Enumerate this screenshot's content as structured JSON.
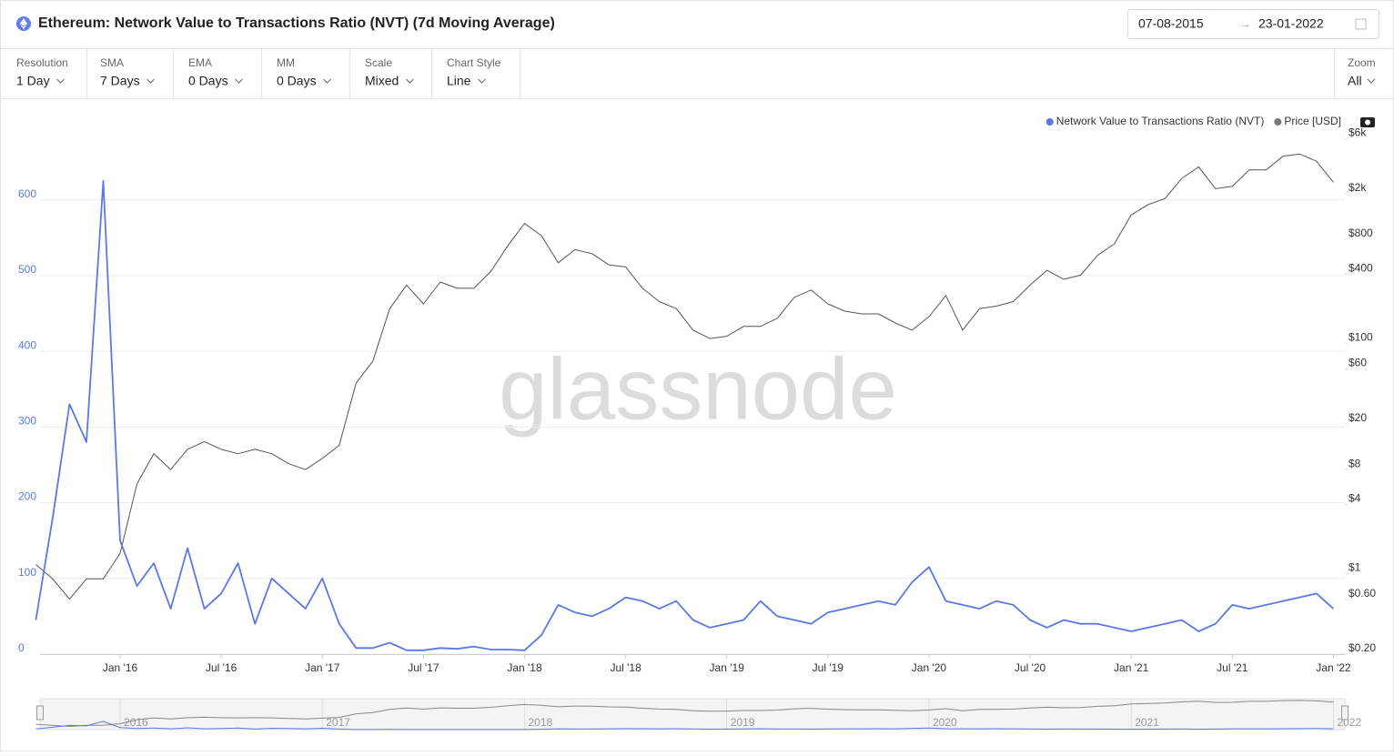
{
  "header": {
    "title": "Ethereum: Network Value to Transactions Ratio (NVT) (7d Moving Average)",
    "date_from": "07-08-2015",
    "date_to": "23-01-2022"
  },
  "controls": [
    {
      "label": "Resolution",
      "value": "1 Day"
    },
    {
      "label": "SMA",
      "value": "7 Days"
    },
    {
      "label": "EMA",
      "value": "0 Days"
    },
    {
      "label": "MM",
      "value": "0 Days"
    },
    {
      "label": "Scale",
      "value": "Mixed"
    },
    {
      "label": "Chart Style",
      "value": "Line"
    }
  ],
  "zoom": {
    "label": "Zoom",
    "value": "All"
  },
  "watermark": "glassnode",
  "navigator": {
    "labels": [
      "2016",
      "2017",
      "2018",
      "2019",
      "2020",
      "2021",
      "2022"
    ]
  },
  "chart_data": {
    "type": "line",
    "x": [
      "2015-08",
      "2015-09",
      "2015-10",
      "2015-11",
      "2015-12",
      "2016-01",
      "2016-02",
      "2016-03",
      "2016-04",
      "2016-05",
      "2016-06",
      "2016-07",
      "2016-08",
      "2016-09",
      "2016-10",
      "2016-11",
      "2016-12",
      "2017-01",
      "2017-02",
      "2017-03",
      "2017-04",
      "2017-05",
      "2017-06",
      "2017-07",
      "2017-08",
      "2017-09",
      "2017-10",
      "2017-11",
      "2017-12",
      "2018-01",
      "2018-02",
      "2018-03",
      "2018-04",
      "2018-05",
      "2018-06",
      "2018-07",
      "2018-08",
      "2018-09",
      "2018-10",
      "2018-11",
      "2018-12",
      "2019-01",
      "2019-02",
      "2019-03",
      "2019-04",
      "2019-05",
      "2019-06",
      "2019-07",
      "2019-08",
      "2019-09",
      "2019-10",
      "2019-11",
      "2019-12",
      "2020-01",
      "2020-02",
      "2020-03",
      "2020-04",
      "2020-05",
      "2020-06",
      "2020-07",
      "2020-08",
      "2020-09",
      "2020-10",
      "2020-11",
      "2020-12",
      "2021-01",
      "2021-02",
      "2021-03",
      "2021-04",
      "2021-05",
      "2021-06",
      "2021-07",
      "2021-08",
      "2021-09",
      "2021-10",
      "2021-11",
      "2021-12",
      "2022-01"
    ],
    "series": [
      {
        "name": "Network Value to Transactions Ratio (NVT)",
        "color": "#5a78e6",
        "axis": "y",
        "values": [
          45,
          180,
          330,
          280,
          625,
          150,
          90,
          120,
          60,
          140,
          60,
          80,
          120,
          40,
          100,
          80,
          60,
          100,
          40,
          8,
          8,
          15,
          5,
          5,
          8,
          7,
          10,
          6,
          6,
          5,
          25,
          65,
          55,
          50,
          60,
          75,
          70,
          60,
          70,
          45,
          35,
          40,
          45,
          70,
          50,
          45,
          40,
          55,
          60,
          65,
          70,
          65,
          95,
          115,
          70,
          65,
          60,
          70,
          65,
          45,
          35,
          45,
          40,
          40,
          35,
          30,
          35,
          40,
          45,
          30,
          40,
          65,
          60,
          65,
          70,
          75,
          80,
          60
        ]
      },
      {
        "name": "Price [USD]",
        "color": "#555555",
        "axis": "y2",
        "values": [
          1.2,
          0.9,
          0.6,
          0.9,
          0.9,
          1.5,
          6,
          11,
          8,
          12,
          14,
          12,
          11,
          12,
          11,
          9,
          8,
          10,
          13,
          45,
          70,
          200,
          320,
          220,
          340,
          300,
          300,
          420,
          700,
          1100,
          860,
          500,
          650,
          600,
          480,
          460,
          300,
          230,
          200,
          130,
          110,
          115,
          140,
          140,
          165,
          250,
          290,
          220,
          190,
          180,
          180,
          150,
          130,
          170,
          260,
          130,
          200,
          210,
          230,
          320,
          430,
          360,
          390,
          580,
          730,
          1300,
          1600,
          1800,
          2700,
          3400,
          2200,
          2300,
          3200,
          3200,
          4200,
          4400,
          3800,
          2500
        ]
      }
    ],
    "xticks": [
      {
        "value": "2016-01",
        "label": "Jan '16"
      },
      {
        "value": "2016-07",
        "label": "Jul '16"
      },
      {
        "value": "2017-01",
        "label": "Jan '17"
      },
      {
        "value": "2017-07",
        "label": "Jul '17"
      },
      {
        "value": "2018-01",
        "label": "Jan '18"
      },
      {
        "value": "2018-07",
        "label": "Jul '18"
      },
      {
        "value": "2019-01",
        "label": "Jan '19"
      },
      {
        "value": "2019-07",
        "label": "Jul '19"
      },
      {
        "value": "2020-01",
        "label": "Jan '20"
      },
      {
        "value": "2020-07",
        "label": "Jul '20"
      },
      {
        "value": "2021-01",
        "label": "Jan '21"
      },
      {
        "value": "2021-07",
        "label": "Jul '21"
      },
      {
        "value": "2022-01",
        "label": "Jan '22"
      }
    ],
    "ylim": [
      0,
      700
    ],
    "yticks": [
      0,
      100,
      200,
      300,
      400,
      500,
      600
    ],
    "y2lim": [
      0.2,
      8000
    ],
    "y2scale": "log",
    "y2ticks": [
      {
        "value": 0.2,
        "label": "$0.20"
      },
      {
        "value": 0.6,
        "label": "$0.60"
      },
      {
        "value": 1,
        "label": "$1"
      },
      {
        "value": 4,
        "label": "$4"
      },
      {
        "value": 8,
        "label": "$8"
      },
      {
        "value": 20,
        "label": "$20"
      },
      {
        "value": 60,
        "label": "$60"
      },
      {
        "value": 100,
        "label": "$100"
      },
      {
        "value": 400,
        "label": "$400"
      },
      {
        "value": 800,
        "label": "$800"
      },
      {
        "value": 2000,
        "label": "$2k"
      },
      {
        "value": 6000,
        "label": "$6k"
      }
    ],
    "grid": true,
    "legend": "top-right"
  }
}
